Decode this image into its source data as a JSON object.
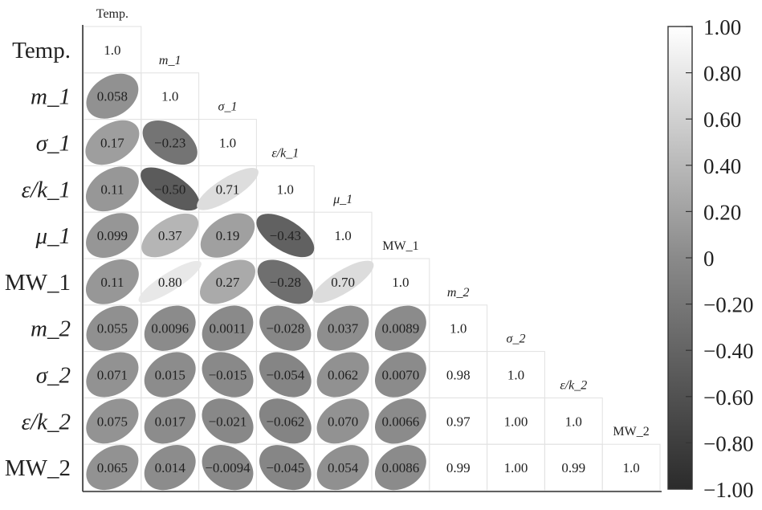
{
  "chart_data": {
    "type": "heatmap",
    "subtype": "correlation-ellipse-lower-triangle",
    "row_labels": [
      "Temp.",
      "m_1",
      "σ_1",
      "ε/k_1",
      "μ_1",
      "MW_1",
      "m_2",
      "σ_2",
      "ε/k_2",
      "MW_2"
    ],
    "diag_labels": [
      "Temp.",
      "m_1",
      "σ_1",
      "ε/k_1",
      "μ_1",
      "MW_1",
      "m_2",
      "σ_2",
      "ε/k_2",
      "MW_2"
    ],
    "value_labels": [
      [
        "1.0"
      ],
      [
        "0.058",
        "1.0"
      ],
      [
        "0.17",
        "−0.23",
        "1.0"
      ],
      [
        "0.11",
        "−0.50",
        "0.71",
        "1.0"
      ],
      [
        "0.099",
        "0.37",
        "0.19",
        "−0.43",
        "1.0"
      ],
      [
        "0.11",
        "0.80",
        "0.27",
        "−0.28",
        "0.70",
        "1.0"
      ],
      [
        "0.055",
        "0.0096",
        "0.0011",
        "−0.028",
        "0.037",
        "0.0089",
        "1.0"
      ],
      [
        "0.071",
        "0.015",
        "−0.015",
        "−0.054",
        "0.062",
        "0.0070",
        "0.98",
        "1.0"
      ],
      [
        "0.075",
        "0.017",
        "−0.021",
        "−0.062",
        "0.070",
        "0.0066",
        "0.97",
        "1.00",
        "1.0"
      ],
      [
        "0.065",
        "0.014",
        "−0.0094",
        "−0.045",
        "0.054",
        "0.0086",
        "0.99",
        "1.00",
        "0.99",
        "1.0"
      ]
    ],
    "values": [
      [
        1.0
      ],
      [
        0.058,
        1.0
      ],
      [
        0.17,
        -0.23,
        1.0
      ],
      [
        0.11,
        -0.5,
        0.71,
        1.0
      ],
      [
        0.099,
        0.37,
        0.19,
        -0.43,
        1.0
      ],
      [
        0.11,
        0.8,
        0.27,
        -0.28,
        0.7,
        1.0
      ],
      [
        0.055,
        0.0096,
        0.0011,
        -0.028,
        0.037,
        0.0089,
        1.0
      ],
      [
        0.071,
        0.015,
        -0.015,
        -0.054,
        0.062,
        0.007,
        0.98,
        1.0
      ],
      [
        0.075,
        0.017,
        -0.021,
        -0.062,
        0.07,
        0.0066,
        0.97,
        1.0,
        1.0
      ],
      [
        0.065,
        0.014,
        -0.0094,
        -0.045,
        0.054,
        0.0086,
        0.99,
        1.0,
        0.99,
        1.0
      ]
    ],
    "ellipse_columns": 6,
    "colorbar": {
      "range": [
        -1.0,
        1.0
      ],
      "ticks": [
        1.0,
        0.8,
        0.6,
        0.4,
        0.2,
        0,
        -0.2,
        -0.4,
        -0.6,
        -0.8,
        -1.0
      ],
      "tick_labels": [
        "1.00",
        "0.80",
        "0.60",
        "0.40",
        "0.20",
        "0",
        "−0.20",
        "−0.40",
        "−0.60",
        "−0.80",
        "−1.00"
      ],
      "color_low": "#2b2b2b",
      "color_mid": "#8a8a8a",
      "color_high": "#ffffff"
    },
    "grid": true,
    "legend_position": "right"
  }
}
